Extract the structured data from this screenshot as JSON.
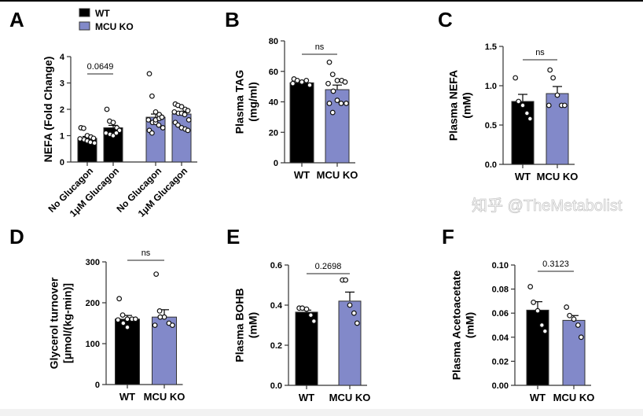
{
  "colors": {
    "WT": "#000000",
    "MCU KO": "#8289c9",
    "axis": "#333333"
  },
  "legend": {
    "items": [
      {
        "label": "WT",
        "color": "#000000"
      },
      {
        "label": "MCU KO",
        "color": "#8289c9"
      }
    ]
  },
  "watermark": "知乎 @TheMetabolist",
  "chart_data": [
    {
      "panel": "A",
      "type": "bar",
      "ylabel": [
        "NEFA (Fold Change)"
      ],
      "ylim": [
        0,
        4
      ],
      "yticks": [
        "0",
        "1",
        "2",
        "3",
        "4"
      ],
      "categories": [
        "No Glucagon",
        "1μM Glucagon",
        "No Glucagon",
        "1μM Glucagon"
      ],
      "groups": [
        "WT",
        "WT",
        "MCU KO",
        "MCU KO"
      ],
      "means": [
        0.9,
        1.3,
        1.7,
        1.82
      ],
      "sem": [
        0.07,
        0.09,
        0.12,
        0.08
      ],
      "points": [
        [
          1.3,
          1.28,
          1.0,
          0.95,
          0.9,
          0.88,
          0.85,
          0.8,
          0.75,
          0.72
        ],
        [
          2.0,
          1.55,
          1.5,
          1.3,
          1.2,
          1.1,
          1.05,
          1.0,
          1.1
        ],
        [
          3.35,
          2.5,
          1.9,
          1.8,
          1.7,
          1.6,
          1.5,
          1.5,
          1.4,
          1.3,
          1.2,
          1.1,
          1.6,
          1.65,
          1.7
        ],
        [
          2.2,
          2.15,
          2.1,
          2.0,
          1.95,
          1.9,
          1.85,
          1.85,
          1.8,
          1.6,
          1.5,
          1.4,
          1.3,
          1.25,
          1.2
        ]
      ],
      "comparison": {
        "between": [
          0,
          1
        ],
        "label": "0.0649"
      }
    },
    {
      "panel": "B",
      "type": "bar",
      "ylabel": [
        "Plasma TAG",
        "(mg/ml)"
      ],
      "ylim": [
        0,
        80
      ],
      "yticks": [
        "0",
        "20",
        "40",
        "60",
        "80"
      ],
      "categories": [
        "WT",
        "MCU KO"
      ],
      "groups": [
        "WT",
        "MCU KO"
      ],
      "means": [
        52.5,
        48
      ],
      "sem": [
        1,
        3
      ],
      "points": [
        [
          55,
          54,
          53,
          54,
          51,
          52
        ],
        [
          66,
          58,
          54,
          54,
          53,
          52,
          47,
          41,
          39,
          39,
          39,
          33
        ]
      ],
      "comparison": {
        "between": [
          0,
          1
        ],
        "label": "ns"
      }
    },
    {
      "panel": "C",
      "type": "bar",
      "ylabel": [
        "Plasma NEFA",
        "(mM)"
      ],
      "ylim": [
        0,
        1.5
      ],
      "yticks": [
        "0.0",
        "0.5",
        "1.0",
        "1.5"
      ],
      "categories": [
        "WT",
        "MCU KO"
      ],
      "groups": [
        "WT",
        "MCU KO"
      ],
      "means": [
        0.8,
        0.9
      ],
      "sem": [
        0.09,
        0.09
      ],
      "points": [
        [
          1.1,
          0.8,
          0.75,
          0.65,
          0.58
        ],
        [
          1.2,
          1.1,
          0.88,
          0.75,
          0.75,
          0.75
        ]
      ],
      "comparison": {
        "between": [
          0,
          1
        ],
        "label": "ns"
      }
    },
    {
      "panel": "D",
      "type": "bar",
      "ylabel": [
        "Glycerol turnover",
        "[μmol/(kg-min)]"
      ],
      "ylim": [
        0,
        300
      ],
      "yticks": [
        "0",
        "100",
        "200",
        "300"
      ],
      "categories": [
        "WT",
        "MCU KO"
      ],
      "groups": [
        "WT",
        "MCU KO"
      ],
      "means": [
        160,
        165
      ],
      "sem": [
        9,
        18
      ],
      "points": [
        [
          210,
          170,
          160,
          160,
          160,
          158,
          150,
          140
        ],
        [
          270,
          180,
          165,
          150,
          145,
          145,
          165
        ]
      ],
      "comparison": {
        "between": [
          0,
          1
        ],
        "label": "ns"
      }
    },
    {
      "panel": "E",
      "type": "bar",
      "ylabel": [
        "Plasma BOHB",
        "(mM)"
      ],
      "ylim": [
        0,
        0.6
      ],
      "yticks": [
        "0.0",
        "0.2",
        "0.4",
        "0.6"
      ],
      "categories": [
        "WT",
        "MCU KO"
      ],
      "groups": [
        "WT",
        "MCU KO"
      ],
      "means": [
        0.365,
        0.42
      ],
      "sem": [
        0.01,
        0.045
      ],
      "points": [
        [
          0.385,
          0.385,
          0.38,
          0.35,
          0.32
        ],
        [
          0.525,
          0.525,
          0.4,
          0.36,
          0.31
        ]
      ],
      "comparison": {
        "between": [
          0,
          1
        ],
        "label": "0.2698"
      }
    },
    {
      "panel": "F",
      "type": "bar",
      "ylabel": [
        "Plasma Acetoacetate",
        "(mM)"
      ],
      "ylim": [
        0,
        0.1
      ],
      "yticks": [
        "0.00",
        "0.02",
        "0.04",
        "0.06",
        "0.08",
        "0.10"
      ],
      "categories": [
        "WT",
        "MCU KO"
      ],
      "groups": [
        "WT",
        "MCU KO"
      ],
      "means": [
        0.0625,
        0.054
      ],
      "sem": [
        0.007,
        0.004
      ],
      "points": [
        [
          0.082,
          0.069,
          0.062,
          0.05,
          0.045
        ],
        [
          0.065,
          0.058,
          0.055,
          0.05,
          0.04
        ]
      ],
      "comparison": {
        "between": [
          0,
          1
        ],
        "label": "0.3123"
      }
    }
  ]
}
